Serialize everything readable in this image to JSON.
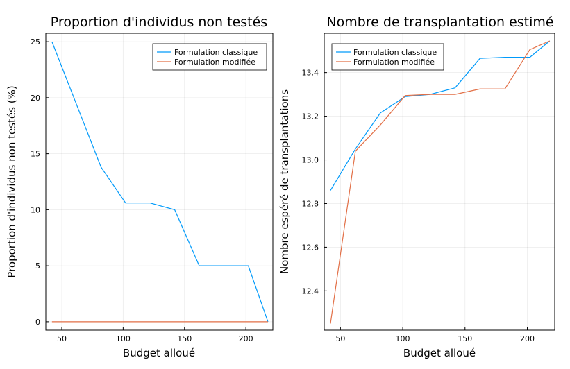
{
  "chart_data": [
    {
      "type": "line",
      "title": "Proportion d'individus non testés",
      "xlabel": "Budget alloué",
      "ylabel": "Proportion d'individus non testés (%)",
      "xlim": [
        37,
        222
      ],
      "ylim": [
        -0.75,
        25.75
      ],
      "xticks": [
        50,
        100,
        150,
        200
      ],
      "yticks": [
        0,
        5,
        10,
        15,
        20,
        25
      ],
      "grid": true,
      "legend_position": "top-right",
      "x": [
        42,
        62,
        82,
        102,
        122,
        142,
        162,
        182,
        202,
        218
      ],
      "series": [
        {
          "name": "Formulation classique",
          "color": "#009AFA",
          "values": [
            25,
            19.4,
            13.8,
            10.6,
            10.6,
            10.0,
            5.0,
            5.0,
            5.0,
            0.0
          ]
        },
        {
          "name": "Formulation modifiée",
          "color": "#E26F46",
          "values": [
            0,
            0,
            0,
            0,
            0,
            0,
            0,
            0,
            0,
            0
          ]
        }
      ]
    },
    {
      "type": "line",
      "title": "Nombre de transplantation estimé",
      "xlabel": "Budget alloué",
      "ylabel": "Nombre espéré de transplantations",
      "xlim": [
        37,
        222
      ],
      "ylim": [
        12.22,
        13.58
      ],
      "xticks": [
        50,
        100,
        150,
        200
      ],
      "yticks": [
        12.4,
        12.6,
        12.8,
        13.0,
        13.2,
        13.4
      ],
      "ytick_labels": [
        "12.4",
        "12.6",
        "12.8",
        "13.0",
        "13.2",
        "13.4"
      ],
      "grid": true,
      "legend_position": "top-left",
      "x": [
        42,
        62,
        82,
        102,
        122,
        142,
        162,
        182,
        202,
        218
      ],
      "series": [
        {
          "name": "Formulation classique",
          "color": "#009AFA",
          "values": [
            12.86,
            13.05,
            13.215,
            13.29,
            13.3,
            13.33,
            13.465,
            13.47,
            13.47,
            13.545
          ]
        },
        {
          "name": "Formulation modifiée",
          "color": "#E26F46",
          "values": [
            12.25,
            13.04,
            13.16,
            13.295,
            13.3,
            13.3,
            13.325,
            13.325,
            13.505,
            13.545
          ]
        }
      ]
    }
  ]
}
